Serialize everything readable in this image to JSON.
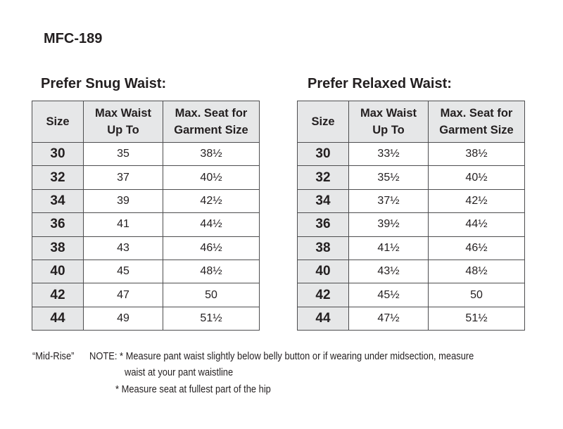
{
  "title": "MFC-189",
  "columns": [
    "Size",
    "Max Waist Up To",
    "Max. Seat for Garment Size"
  ],
  "column_lines": [
    [
      "Size"
    ],
    [
      "Max Waist",
      "Up To"
    ],
    [
      "Max. Seat for",
      "Garment Size"
    ]
  ],
  "tables": [
    {
      "heading": "Prefer Snug Waist:",
      "rows": [
        [
          "30",
          "35",
          "38½"
        ],
        [
          "32",
          "37",
          "40½"
        ],
        [
          "34",
          "39",
          "42½"
        ],
        [
          "36",
          "41",
          "44½"
        ],
        [
          "38",
          "43",
          "46½"
        ],
        [
          "40",
          "45",
          "48½"
        ],
        [
          "42",
          "47",
          "50"
        ],
        [
          "44",
          "49",
          "51½"
        ]
      ]
    },
    {
      "heading": "Prefer Relaxed Waist:",
      "rows": [
        [
          "30",
          "33½",
          "38½"
        ],
        [
          "32",
          "35½",
          "40½"
        ],
        [
          "34",
          "37½",
          "42½"
        ],
        [
          "36",
          "39½",
          "44½"
        ],
        [
          "38",
          "41½",
          "46½"
        ],
        [
          "40",
          "43½",
          "48½"
        ],
        [
          "42",
          "45½",
          "50"
        ],
        [
          "44",
          "47½",
          "51½"
        ]
      ]
    }
  ],
  "notes": {
    "rise": "“Mid-Rise”",
    "line1": "NOTE: * Measure pant waist slightly below belly button or if wearing under midsection, measure",
    "line2": "waist at your pant waistline",
    "line3": "* Measure seat at fullest part of the hip"
  }
}
